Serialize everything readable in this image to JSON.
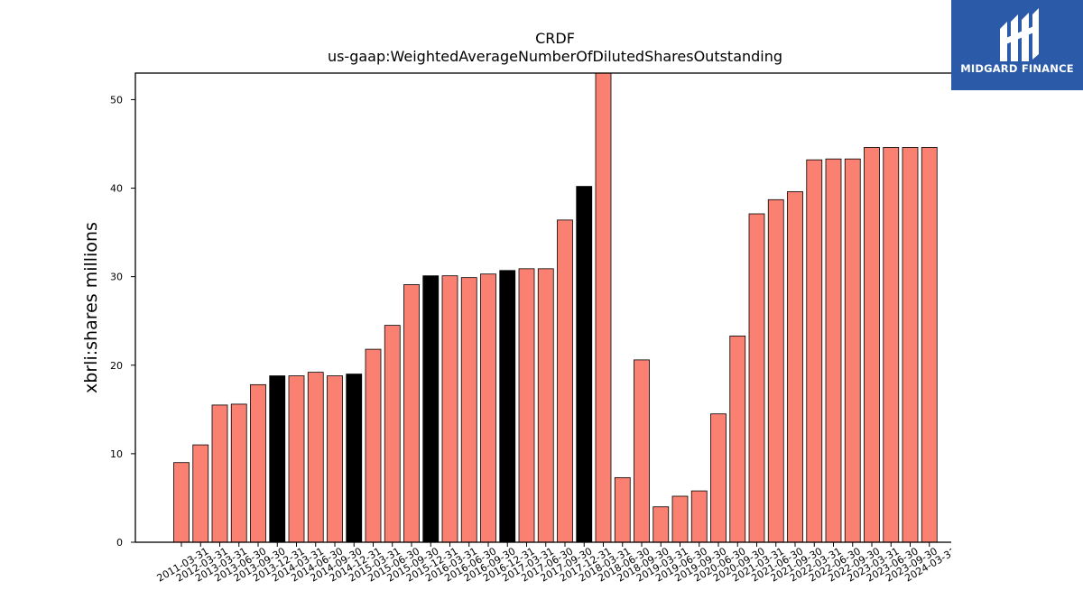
{
  "chart_data": {
    "type": "bar",
    "title": "CRDF",
    "subtitle": "us-gaap:WeightedAverageNumberOfDilutedSharesOutstanding",
    "xlabel": "",
    "ylabel": "xbrli:shares millions",
    "ylim": [
      0,
      53
    ],
    "yticks": [
      0,
      10,
      20,
      30,
      40,
      50
    ],
    "grid": false,
    "categories": [
      "2011-03-31",
      "2012-03-31",
      "2013-03-31",
      "2013-06-30",
      "2013-09-30",
      "2013-12-31",
      "2014-03-31",
      "2014-06-30",
      "2014-09-30",
      "2014-12-31",
      "2015-03-31",
      "2015-06-30",
      "2015-09-30",
      "2015-12-31",
      "2016-03-31",
      "2016-06-30",
      "2016-09-30",
      "2016-12-31",
      "2017-03-31",
      "2017-06-30",
      "2017-09-30",
      "2017-12-31",
      "2018-03-31",
      "2018-06-30",
      "2018-09-30",
      "2019-03-31",
      "2019-06-30",
      "2019-09-30",
      "2020-06-30",
      "2020-09-30",
      "2021-03-31",
      "2021-06-30",
      "2021-09-30",
      "2022-03-31",
      "2022-06-30",
      "2022-09-30",
      "2023-03-31",
      "2023-06-30",
      "2023-09-30",
      "2024-03-31"
    ],
    "values": [
      9.0,
      11.0,
      15.5,
      15.6,
      17.8,
      18.8,
      18.8,
      19.2,
      18.8,
      19.0,
      21.8,
      24.5,
      29.1,
      30.1,
      30.1,
      29.9,
      30.3,
      30.7,
      30.9,
      30.9,
      36.4,
      40.2,
      53.0,
      7.3,
      20.6,
      4.0,
      5.2,
      5.8,
      14.5,
      23.3,
      37.1,
      38.7,
      39.6,
      43.2,
      43.3,
      43.3,
      44.6,
      44.6,
      44.6,
      44.6
    ],
    "highlight": [
      false,
      false,
      false,
      false,
      false,
      true,
      false,
      false,
      false,
      true,
      false,
      false,
      false,
      true,
      false,
      false,
      false,
      true,
      false,
      false,
      false,
      true,
      false,
      false,
      false,
      false,
      false,
      false,
      false,
      false,
      false,
      false,
      false,
      false,
      false,
      false,
      false,
      false,
      false,
      false
    ],
    "colors": {
      "bar": "#fa8072",
      "highlight": "#000000",
      "edge": "#000000"
    }
  },
  "logo": {
    "text": "MIDGARD FINANCE",
    "color": "#2a5aa8"
  }
}
